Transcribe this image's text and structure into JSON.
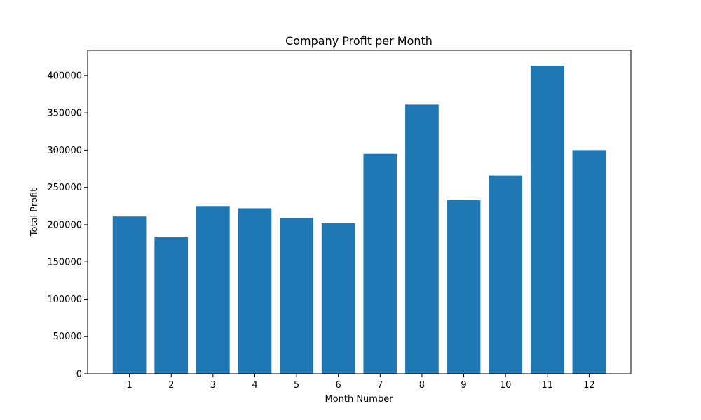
{
  "chart_data": {
    "type": "bar",
    "title": "Company Profit per Month",
    "xlabel": "Month Number",
    "ylabel": "Total Profit",
    "categories": [
      "1",
      "2",
      "3",
      "4",
      "5",
      "6",
      "7",
      "8",
      "9",
      "10",
      "11",
      "12"
    ],
    "values": [
      211000,
      183000,
      225000,
      222000,
      209000,
      202000,
      295000,
      361000,
      233000,
      266000,
      413000,
      300000
    ],
    "ylim": [
      0,
      433650
    ],
    "yticks": [
      0,
      50000,
      100000,
      150000,
      200000,
      250000,
      300000,
      350000,
      400000
    ],
    "ytick_labels": [
      "0",
      "50000",
      "100000",
      "150000",
      "200000",
      "250000",
      "300000",
      "350000",
      "400000"
    ],
    "bar_color": "#1f77b4",
    "grid": false,
    "legend": false
  }
}
